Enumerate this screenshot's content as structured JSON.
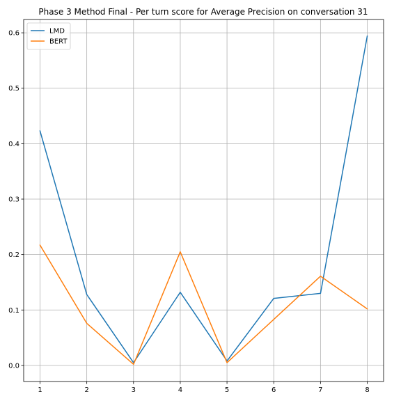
{
  "chart_data": {
    "type": "line",
    "title": "Phase 3 Method Final - Per turn score for Average Precision on conversation 31",
    "xlabel": "",
    "ylabel": "",
    "x": [
      1,
      2,
      3,
      4,
      5,
      6,
      7,
      8
    ],
    "series": [
      {
        "name": "LMD",
        "color": "#1f77b4",
        "values": [
          0.423,
          0.128,
          0.005,
          0.132,
          0.008,
          0.121,
          0.13,
          0.594
        ]
      },
      {
        "name": "BERT",
        "color": "#ff7f0e",
        "values": [
          0.217,
          0.076,
          0.002,
          0.205,
          0.005,
          0.083,
          0.161,
          0.102
        ]
      }
    ],
    "xticks": [
      "1",
      "2",
      "3",
      "4",
      "5",
      "6",
      "7",
      "8"
    ],
    "yticks": [
      "0.0",
      "0.1",
      "0.2",
      "0.3",
      "0.4",
      "0.5",
      "0.6"
    ],
    "xlim": [
      0.65,
      8.35
    ],
    "ylim": [
      -0.029,
      0.624
    ],
    "grid": true,
    "legend": "top-left"
  }
}
